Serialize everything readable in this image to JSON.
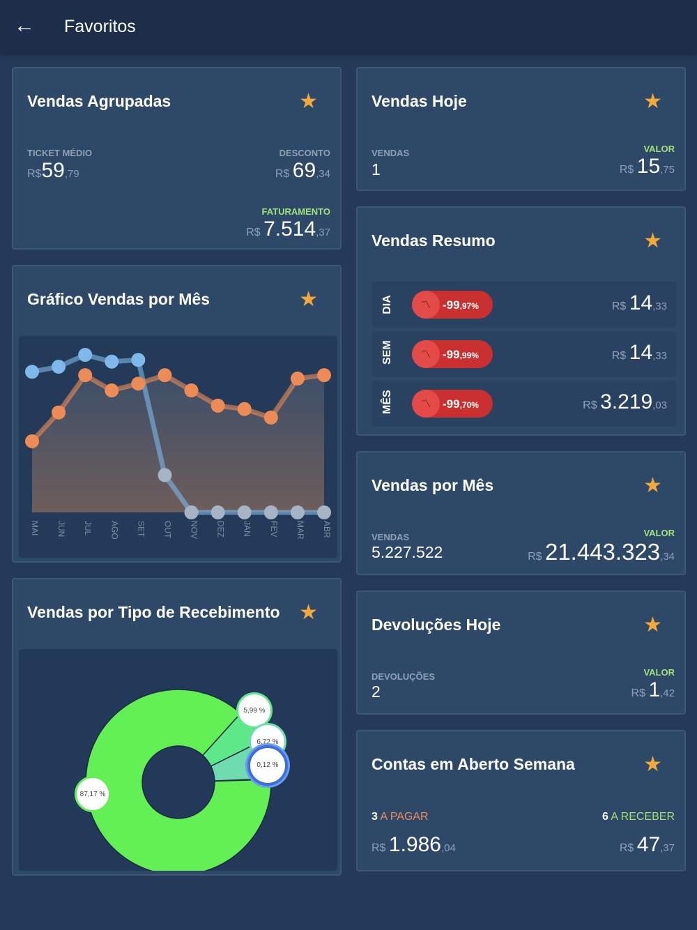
{
  "header": {
    "title": "Favoritos",
    "back_icon": "arrow-left-icon"
  },
  "vendas_agrupadas": {
    "title": "Vendas Agrupadas",
    "ticket_label": "TICKET MÉDIO",
    "ticket_cur": "R$",
    "ticket_int": "59",
    "ticket_dec": ",79",
    "desconto_label": "DESCONTO",
    "desconto_cur": "R$ ",
    "desconto_int": "69",
    "desconto_dec": ",34",
    "fat_label": "FATURAMENTO",
    "fat_cur": "R$ ",
    "fat_int": "7.514",
    "fat_dec": ",37"
  },
  "vendas_hoje": {
    "title": "Vendas Hoje",
    "vendas_label": "VENDAS",
    "vendas": "1",
    "valor_label": "VALOR",
    "cur": "R$ ",
    "int": "15",
    "dec": ",75"
  },
  "vendas_resumo": {
    "title": "Vendas Resumo",
    "rows": [
      {
        "label": "DIA",
        "pct_int": "-99",
        "pct_dec": ",97%",
        "cur": "R$ ",
        "int": "14",
        "dec": ",33"
      },
      {
        "label": "SEM",
        "pct_int": "-99",
        "pct_dec": ",99%",
        "cur": "R$ ",
        "int": "14",
        "dec": ",33"
      },
      {
        "label": "MÊS",
        "pct_int": "-99",
        "pct_dec": ",70%",
        "cur": "R$ ",
        "int": "3.219",
        "dec": ",03"
      }
    ]
  },
  "vendas_mes": {
    "title": "Vendas por Mês",
    "vendas_label": "VENDAS",
    "vendas": "5.227.522",
    "valor_label": "VALOR",
    "cur": "R$ ",
    "int": "21.443.323",
    "dec": ",34"
  },
  "devolucoes": {
    "title": "Devoluções Hoje",
    "label": "DEVOLUÇÕES",
    "count": "2",
    "valor_label": "VALOR",
    "cur": "R$ ",
    "int": "1",
    "dec": ",42"
  },
  "contas": {
    "title": "Contas em Aberto Semana",
    "pagar_count": "3",
    "pagar_label": " A PAGAR",
    "pagar_cur": "R$ ",
    "pagar_int": "1.986",
    "pagar_dec": ",04",
    "receber_count": "6",
    "receber_label": " A RECEBER",
    "receber_cur": "R$ ",
    "receber_int": "47",
    "receber_dec": ",37"
  },
  "grafico": {
    "title": "Gráfico Vendas por Mês"
  },
  "tipo": {
    "title": "Vendas por Tipo de Recebimento"
  },
  "chart_data": [
    {
      "type": "line",
      "title": "Gráfico Vendas por Mês",
      "categories": [
        "MAI",
        "JUN",
        "JUL",
        "AGO",
        "SET",
        "OUT",
        "NOV",
        "DEZ",
        "JAN",
        "FEV",
        "MAR",
        "ABR"
      ],
      "series": [
        {
          "name": "blue",
          "color": "#7fb8ea",
          "values": [
            83,
            86,
            93,
            89,
            90,
            22,
            0,
            0,
            0,
            0,
            0,
            0
          ]
        },
        {
          "name": "orange",
          "color": "#ee8c58",
          "values": [
            42,
            59,
            81,
            72,
            76,
            81,
            72,
            63,
            61,
            56,
            79,
            81
          ]
        }
      ],
      "ylim": [
        0,
        100
      ]
    },
    {
      "type": "pie",
      "title": "Vendas por Tipo de Recebimento",
      "labels": [
        "87,17 %",
        "5,99 %",
        "6,72 %",
        "0,12 %"
      ],
      "values": [
        87.17,
        5.99,
        6.72,
        0.12
      ],
      "colors": [
        "#62f055",
        "#5ee88a",
        "#6fdcb0",
        "#3d6ee0"
      ]
    }
  ]
}
